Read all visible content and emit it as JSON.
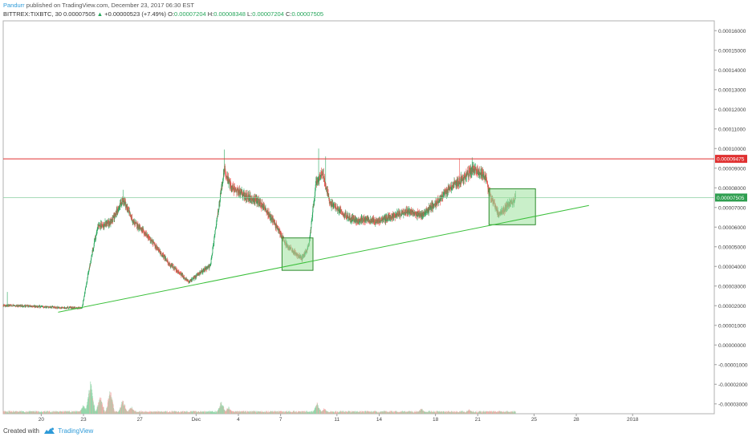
{
  "header": {
    "author": "Pandurr",
    "published": "published on TradingView.com, December 23, 2017 06:30 EST",
    "symbol": "BITTREX:TIXBTC, 30",
    "price": "0.00007505",
    "change_arrow": "▲",
    "change": "+0.00000523 (+7.49%)",
    "o_label": "O:",
    "o_value": "0.00007204",
    "h_label": "H:",
    "h_value": "0.00008348",
    "l_label": "L:",
    "l_value": "0.00007204",
    "c_label": "C:",
    "c_value": "0.00007505"
  },
  "footer": {
    "created_with": "Created with",
    "brand": "TradingView"
  },
  "colors": {
    "up": "#26a65b",
    "down": "#ef5350",
    "trendline": "#3cc03c",
    "box_fill": "#9de29d",
    "box_stroke": "#2e8b2e",
    "resistance": "#e03030",
    "last_price": "#2e9e4f",
    "axis_text": "#444444",
    "grid": "#9e9e9e"
  },
  "chart_data": {
    "type": "candlestick",
    "symbol": "BITTREX:TIXBTC",
    "interval": "30",
    "ylim": [
      -3.5e-05,
      0.000165
    ],
    "y_ticks": [
      "0.00016000",
      "0.00015000",
      "0.00014000",
      "0.00013000",
      "0.00012000",
      "0.00011000",
      "0.00010000",
      "0.00009000",
      "0.00008000",
      "0.00007000",
      "0.00006000",
      "0.00005000",
      "0.00004000",
      "0.00003000",
      "0.00002000",
      "0.00001000",
      "0.00000000",
      "-0.00001000",
      "-0.00002000",
      "-0.00003000"
    ],
    "x_ticks": [
      "20",
      "23",
      "27",
      "Dec",
      "4",
      "7",
      "11",
      "14",
      "18",
      "21",
      "25",
      "28",
      "2018"
    ],
    "x_tick_pos": [
      20,
      23,
      27,
      31,
      34,
      37,
      41,
      44,
      48,
      51,
      55,
      58,
      62
    ],
    "xlim": [
      17.3,
      67.8
    ],
    "price_path_knots": [
      [
        17.3,
        2.01e-05
      ],
      [
        19.0,
        1.99e-05
      ],
      [
        21.0,
        1.91e-05
      ],
      [
        22.9,
        1.88e-05
      ],
      [
        23.3,
        3.5e-05
      ],
      [
        24.0,
        6e-05
      ],
      [
        25.0,
        6.3e-05
      ],
      [
        25.8,
        7.4e-05
      ],
      [
        26.5,
        6.3e-05
      ],
      [
        27.5,
        5.6e-05
      ],
      [
        29.0,
        4.2e-05
      ],
      [
        30.5,
        3.2e-05
      ],
      [
        31.5,
        3.8e-05
      ],
      [
        32.0,
        4e-05
      ],
      [
        32.6,
        7e-05
      ],
      [
        33.0,
        8.9e-05
      ],
      [
        33.5,
        8e-05
      ],
      [
        34.5,
        7.6e-05
      ],
      [
        35.5,
        7.3e-05
      ],
      [
        36.5,
        6.3e-05
      ],
      [
        37.5,
        5e-05
      ],
      [
        38.5,
        4.4e-05
      ],
      [
        39.0,
        5e-05
      ],
      [
        39.5,
        8.2e-05
      ],
      [
        40.0,
        8.8e-05
      ],
      [
        40.5,
        7.2e-05
      ],
      [
        42.0,
        6.4e-05
      ],
      [
        44.0,
        6.3e-05
      ],
      [
        46.0,
        6.8e-05
      ],
      [
        47.0,
        6.6e-05
      ],
      [
        48.0,
        7.2e-05
      ],
      [
        49.0,
        8e-05
      ],
      [
        50.0,
        8.5e-05
      ],
      [
        50.7,
        9e-05
      ],
      [
        51.5,
        8.6e-05
      ],
      [
        52.0,
        7.4e-05
      ],
      [
        52.5,
        6.6e-05
      ],
      [
        53.0,
        7e-05
      ],
      [
        53.7,
        7.5e-05
      ]
    ],
    "price_spikes": [
      [
        17.6,
        2.7e-05
      ],
      [
        25.8,
        7.9e-05
      ],
      [
        33.0,
        9.95e-05
      ],
      [
        39.7,
        0.0001
      ],
      [
        40.2,
        9.6e-05
      ],
      [
        49.7,
        9.5e-05
      ],
      [
        50.6,
        9.55e-05
      ]
    ],
    "volume_spikes": [
      [
        23.0,
        5e-06
      ],
      [
        23.5,
        1.8e-05
      ],
      [
        24.2,
        1.05e-05
      ],
      [
        24.9,
        1.3e-05
      ],
      [
        25.8,
        8e-06
      ],
      [
        26.4,
        4e-06
      ],
      [
        32.8,
        7e-06
      ],
      [
        33.3,
        4e-06
      ],
      [
        39.6,
        6e-06
      ],
      [
        40.1,
        3e-06
      ],
      [
        47.0,
        3e-06
      ],
      [
        50.4,
        2.5e-06
      ]
    ],
    "resistance_level": 9.475e-05,
    "resistance_label": "0.00009475",
    "last_price": 7.505e-05,
    "last_price_label": "0.00007505",
    "trendline": {
      "start": [
        21.2,
        1.67e-05
      ],
      "end": [
        58.9,
        7.1e-05
      ]
    },
    "boxes": [
      {
        "x0": 37.1,
        "x1": 39.3,
        "y0": 3.8e-05,
        "y1": 5.45e-05
      },
      {
        "x0": 51.8,
        "x1": 55.1,
        "y0": 6.12e-05,
        "y1": 7.95e-05
      }
    ]
  }
}
